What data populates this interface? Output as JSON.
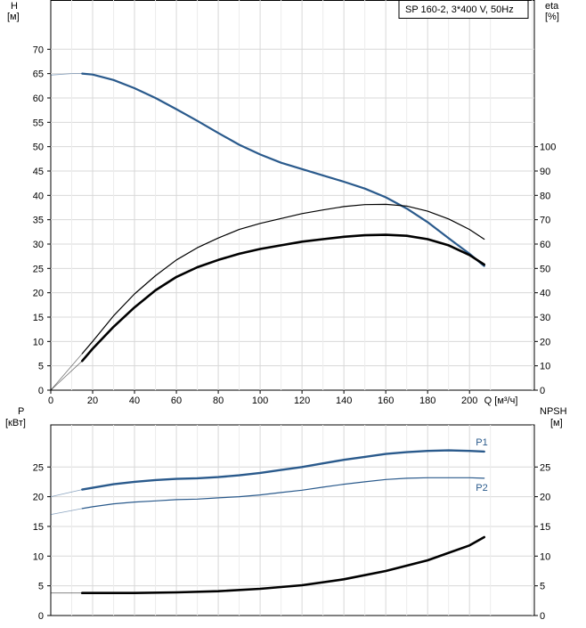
{
  "legend_box": {
    "text": "SP 160-2, 3*400 V, 50Hz"
  },
  "chart_data": [
    {
      "type": "line",
      "panel": "head-efficiency",
      "left_axis": {
        "label_line1": "H",
        "label_line2": "[м]",
        "ylim": [
          0,
          75
        ],
        "ticks": [
          0,
          5,
          10,
          15,
          20,
          25,
          30,
          35,
          40,
          45,
          50,
          55,
          60,
          65,
          70
        ]
      },
      "right_axis": {
        "label_line1": "eta",
        "label_line2": "[%]",
        "ylim": [
          0,
          150
        ],
        "ticks": [
          0,
          10,
          20,
          30,
          40,
          50,
          60,
          70,
          80,
          90,
          100
        ]
      },
      "x_axis": {
        "label": "Q [м³/ч]",
        "xlim": [
          0,
          230
        ],
        "ticks": [
          0,
          20,
          40,
          60,
          80,
          100,
          120,
          140,
          160,
          180,
          200
        ]
      },
      "grid": true,
      "colors": {
        "head": "#2a5a8c",
        "eta": "#000000"
      },
      "series": [
        {
          "key": "head",
          "axis": "left",
          "color": "#2a5a8c",
          "width": 2.2,
          "points": [
            [
              0,
              64.7
            ],
            [
              10,
              65
            ],
            [
              15,
              65
            ],
            [
              20,
              64.8
            ],
            [
              30,
              63.7
            ],
            [
              40,
              62
            ],
            [
              50,
              60
            ],
            [
              60,
              57.7
            ],
            [
              70,
              55.3
            ],
            [
              80,
              52.8
            ],
            [
              90,
              50.4
            ],
            [
              100,
              48.4
            ],
            [
              110,
              46.7
            ],
            [
              120,
              45.4
            ],
            [
              130,
              44.1
            ],
            [
              140,
              42.8
            ],
            [
              150,
              41.4
            ],
            [
              160,
              39.6
            ],
            [
              170,
              37.3
            ],
            [
              180,
              34.5
            ],
            [
              190,
              31.2
            ],
            [
              200,
              28
            ],
            [
              207,
              25.5
            ]
          ],
          "dashed_until_x": 15
        },
        {
          "key": "eta_total",
          "axis": "right",
          "color": "#000000",
          "width": 2.6,
          "points": [
            [
              0,
              0
            ],
            [
              15,
              12
            ],
            [
              20,
              17
            ],
            [
              30,
              26
            ],
            [
              40,
              34
            ],
            [
              50,
              41
            ],
            [
              60,
              46.5
            ],
            [
              70,
              50.5
            ],
            [
              80,
              53.5
            ],
            [
              90,
              56
            ],
            [
              100,
              58
            ],
            [
              110,
              59.5
            ],
            [
              120,
              61
            ],
            [
              130,
              62
            ],
            [
              140,
              63
            ],
            [
              150,
              63.6
            ],
            [
              160,
              63.8
            ],
            [
              170,
              63.4
            ],
            [
              180,
              62
            ],
            [
              190,
              59.5
            ],
            [
              200,
              55.5
            ],
            [
              207,
              51.6
            ]
          ],
          "dashed_until_x": 15
        },
        {
          "key": "eta_hydraulic",
          "axis": "right",
          "color": "#000000",
          "width": 1.2,
          "points": [
            [
              0,
              0
            ],
            [
              15,
              15
            ],
            [
              20,
              20
            ],
            [
              30,
              30.5
            ],
            [
              40,
              39.5
            ],
            [
              50,
              47
            ],
            [
              60,
              53.5
            ],
            [
              70,
              58.5
            ],
            [
              80,
              62.5
            ],
            [
              90,
              66
            ],
            [
              100,
              68.5
            ],
            [
              110,
              70.5
            ],
            [
              120,
              72.5
            ],
            [
              130,
              74
            ],
            [
              140,
              75.4
            ],
            [
              150,
              76.2
            ],
            [
              160,
              76.3
            ],
            [
              170,
              75.6
            ],
            [
              180,
              73.5
            ],
            [
              190,
              70.3
            ],
            [
              200,
              66
            ],
            [
              207,
              62
            ]
          ],
          "dashed_until_x": 15
        }
      ]
    },
    {
      "type": "line",
      "panel": "power-npsh",
      "left_axis": {
        "label_line1": "P",
        "label_line2": "[кВт]",
        "ylim": [
          0,
          30
        ],
        "ticks": [
          0,
          5,
          10,
          15,
          20,
          25
        ]
      },
      "right_axis": {
        "label_line1": "NPSH",
        "label_line2": "[м]",
        "ylim": [
          0,
          30
        ],
        "ticks": [
          0,
          5,
          10,
          15,
          20,
          25
        ]
      },
      "x_axis": {
        "xlim": [
          0,
          230
        ]
      },
      "grid": true,
      "colors": {
        "power": "#2a5a8c",
        "npsh": "#000000"
      },
      "series": [
        {
          "key": "P1",
          "name": "P1",
          "axis": "left",
          "color": "#2a5a8c",
          "width": 2.4,
          "points": [
            [
              0,
              20
            ],
            [
              15,
              21.2
            ],
            [
              20,
              21.5
            ],
            [
              30,
              22.1
            ],
            [
              40,
              22.5
            ],
            [
              50,
              22.8
            ],
            [
              60,
              23
            ],
            [
              70,
              23.1
            ],
            [
              80,
              23.3
            ],
            [
              90,
              23.6
            ],
            [
              100,
              24
            ],
            [
              110,
              24.5
            ],
            [
              120,
              25
            ],
            [
              130,
              25.6
            ],
            [
              140,
              26.2
            ],
            [
              150,
              26.7
            ],
            [
              160,
              27.2
            ],
            [
              170,
              27.5
            ],
            [
              180,
              27.7
            ],
            [
              190,
              27.8
            ],
            [
              200,
              27.7
            ],
            [
              207,
              27.6
            ]
          ],
          "dashed_until_x": 15,
          "label_at_x": 203,
          "label_dy": -7
        },
        {
          "key": "P2",
          "name": "P2",
          "axis": "left",
          "color": "#2a5a8c",
          "width": 1.2,
          "points": [
            [
              0,
              17
            ],
            [
              15,
              18
            ],
            [
              20,
              18.3
            ],
            [
              30,
              18.8
            ],
            [
              40,
              19.1
            ],
            [
              50,
              19.3
            ],
            [
              60,
              19.5
            ],
            [
              70,
              19.6
            ],
            [
              80,
              19.8
            ],
            [
              90,
              20
            ],
            [
              100,
              20.3
            ],
            [
              110,
              20.7
            ],
            [
              120,
              21.1
            ],
            [
              130,
              21.6
            ],
            [
              140,
              22.1
            ],
            [
              150,
              22.5
            ],
            [
              160,
              22.9
            ],
            [
              170,
              23.1
            ],
            [
              180,
              23.2
            ],
            [
              190,
              23.2
            ],
            [
              200,
              23.2
            ],
            [
              207,
              23.1
            ]
          ],
          "dashed_until_x": 15,
          "label_at_x": 203,
          "label_dy": 14
        },
        {
          "key": "NPSH",
          "axis": "right",
          "color": "#000000",
          "width": 2.6,
          "points": [
            [
              0,
              3.8
            ],
            [
              15,
              3.8
            ],
            [
              20,
              3.8
            ],
            [
              40,
              3.8
            ],
            [
              60,
              3.9
            ],
            [
              80,
              4.1
            ],
            [
              100,
              4.5
            ],
            [
              120,
              5.1
            ],
            [
              140,
              6.1
            ],
            [
              160,
              7.5
            ],
            [
              180,
              9.3
            ],
            [
              200,
              11.8
            ],
            [
              207,
              13.2
            ]
          ],
          "dashed_until_x": 15
        }
      ]
    }
  ]
}
